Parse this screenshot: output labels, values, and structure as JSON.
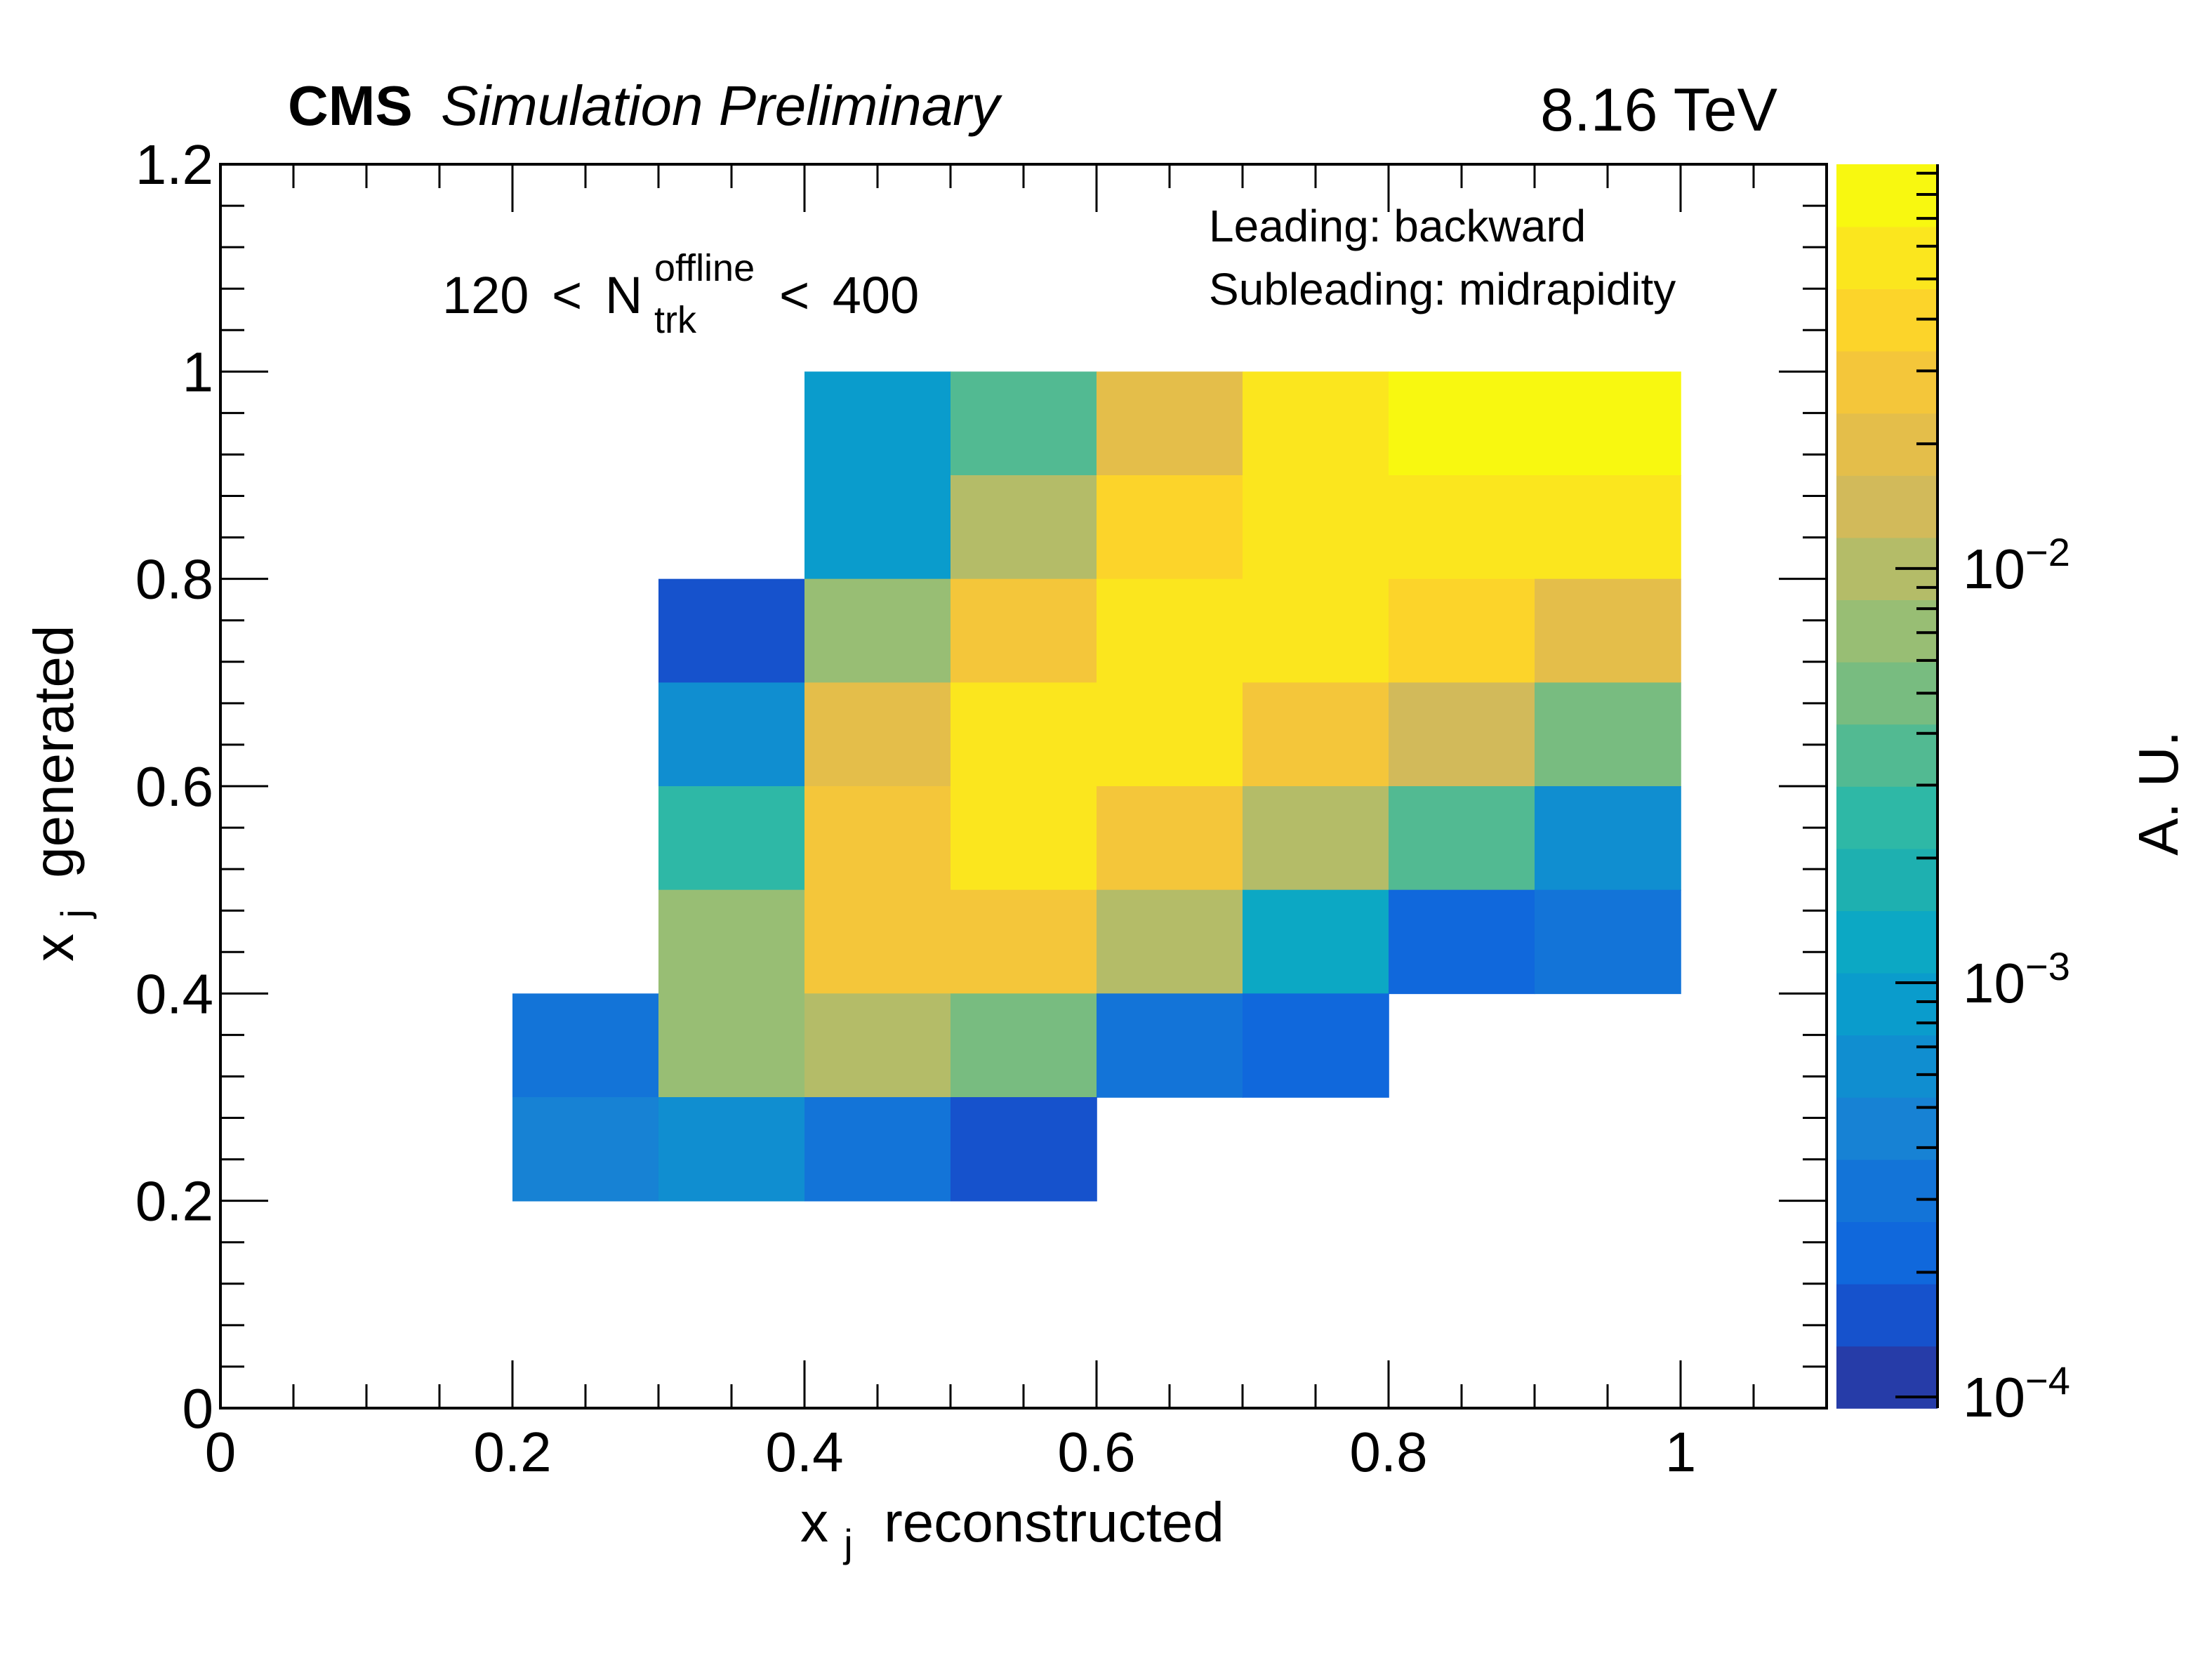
{
  "chart_data": {
    "type": "heatmap",
    "header": {
      "experiment": "CMS",
      "status": "Simulation Preliminary",
      "energy": "8.16 TeV"
    },
    "annotations": {
      "multiplicity": {
        "low": "120",
        "lt1": "<",
        "symbol": "N",
        "sup": "offline",
        "sub": "trk",
        "lt2": "<",
        "high": "400"
      },
      "leading": "Leading: backward",
      "subleading": "Subleading: midrapidity"
    },
    "xlabel": {
      "main": "x",
      "sub": "j",
      "rest": " reconstructed"
    },
    "ylabel": {
      "main": "x",
      "sub": "j",
      "rest": " generated"
    },
    "zlabel": "A. U.",
    "xlim": [
      0,
      1.1
    ],
    "ylim": [
      0,
      1.2
    ],
    "x_ticks_major": [
      0,
      0.2,
      0.4,
      0.6,
      0.8,
      1.0
    ],
    "x_tick_labels": [
      "0",
      "0.2",
      "0.4",
      "0.6",
      "0.8",
      "1"
    ],
    "x_minor_step": 0.05,
    "y_ticks_major": [
      0,
      0.2,
      0.4,
      0.6,
      0.8,
      1.0,
      1.2
    ],
    "y_tick_labels": [
      "0",
      "0.2",
      "0.4",
      "0.6",
      "0.8",
      "1",
      "1.2"
    ],
    "y_minor_step": 0.04,
    "z_scale": "log",
    "zlim": [
      9.4e-05,
      0.0946
    ],
    "z_tick_values": [
      0.0001,
      0.001,
      0.01
    ],
    "z_tick_labels": [
      {
        "base": "10",
        "exp": "−4"
      },
      {
        "base": "10",
        "exp": "−3"
      },
      {
        "base": "10",
        "exp": "−2"
      }
    ],
    "palette": [
      "#263ca8",
      "#1652cc",
      "#1068dc",
      "#1374d8",
      "#1782d4",
      "#108ed0",
      "#0a9ccc",
      "#0ca8c4",
      "#1eb0b0",
      "#2eb8a6",
      "#52ba92",
      "#78bc80",
      "#98be74",
      "#b4bc68",
      "#d2ba5a",
      "#e4be4a",
      "#f4c63a",
      "#fcd42a",
      "#fbe61e",
      "#f8f810"
    ],
    "bin_width": 0.1,
    "bins": [
      {
        "x": 0.4,
        "y": 0.9,
        "z": 0.00092
      },
      {
        "x": 0.5,
        "y": 0.9,
        "z": 0.0036
      },
      {
        "x": 0.6,
        "y": 0.9,
        "z": 0.019
      },
      {
        "x": 0.7,
        "y": 0.9,
        "z": 0.054
      },
      {
        "x": 0.8,
        "y": 0.9,
        "z": 0.077
      },
      {
        "x": 0.9,
        "y": 0.9,
        "z": 0.077
      },
      {
        "x": 0.4,
        "y": 0.8,
        "z": 0.00092
      },
      {
        "x": 0.5,
        "y": 0.8,
        "z": 0.0096
      },
      {
        "x": 0.6,
        "y": 0.8,
        "z": 0.038
      },
      {
        "x": 0.7,
        "y": 0.8,
        "z": 0.054
      },
      {
        "x": 0.8,
        "y": 0.8,
        "z": 0.054
      },
      {
        "x": 0.9,
        "y": 0.8,
        "z": 0.054
      },
      {
        "x": 0.3,
        "y": 0.7,
        "z": 0.00016
      },
      {
        "x": 0.4,
        "y": 0.7,
        "z": 0.0068
      },
      {
        "x": 0.5,
        "y": 0.7,
        "z": 0.027
      },
      {
        "x": 0.6,
        "y": 0.7,
        "z": 0.054
      },
      {
        "x": 0.7,
        "y": 0.7,
        "z": 0.054
      },
      {
        "x": 0.8,
        "y": 0.7,
        "z": 0.038
      },
      {
        "x": 0.9,
        "y": 0.7,
        "z": 0.019
      },
      {
        "x": 0.3,
        "y": 0.6,
        "z": 0.00065
      },
      {
        "x": 0.4,
        "y": 0.6,
        "z": 0.019
      },
      {
        "x": 0.5,
        "y": 0.6,
        "z": 0.054
      },
      {
        "x": 0.6,
        "y": 0.6,
        "z": 0.054
      },
      {
        "x": 0.7,
        "y": 0.6,
        "z": 0.027
      },
      {
        "x": 0.8,
        "y": 0.6,
        "z": 0.0136
      },
      {
        "x": 0.9,
        "y": 0.6,
        "z": 0.0048
      },
      {
        "x": 0.3,
        "y": 0.5,
        "z": 0.0026
      },
      {
        "x": 0.4,
        "y": 0.5,
        "z": 0.027
      },
      {
        "x": 0.5,
        "y": 0.5,
        "z": 0.054
      },
      {
        "x": 0.6,
        "y": 0.5,
        "z": 0.027
      },
      {
        "x": 0.7,
        "y": 0.5,
        "z": 0.0096
      },
      {
        "x": 0.8,
        "y": 0.5,
        "z": 0.0036
      },
      {
        "x": 0.9,
        "y": 0.5,
        "z": 0.00065
      },
      {
        "x": 0.3,
        "y": 0.4,
        "z": 0.0068
      },
      {
        "x": 0.4,
        "y": 0.4,
        "z": 0.027
      },
      {
        "x": 0.5,
        "y": 0.4,
        "z": 0.027
      },
      {
        "x": 0.6,
        "y": 0.4,
        "z": 0.0096
      },
      {
        "x": 0.7,
        "y": 0.4,
        "z": 0.0013
      },
      {
        "x": 0.8,
        "y": 0.4,
        "z": 0.00023
      },
      {
        "x": 0.9,
        "y": 0.4,
        "z": 0.00033
      },
      {
        "x": 0.2,
        "y": 0.3,
        "z": 0.00033
      },
      {
        "x": 0.3,
        "y": 0.3,
        "z": 0.0068
      },
      {
        "x": 0.4,
        "y": 0.3,
        "z": 0.0096
      },
      {
        "x": 0.5,
        "y": 0.3,
        "z": 0.0048
      },
      {
        "x": 0.6,
        "y": 0.3,
        "z": 0.00033
      },
      {
        "x": 0.7,
        "y": 0.3,
        "z": 0.00023
      },
      {
        "x": 0.2,
        "y": 0.2,
        "z": 0.00046
      },
      {
        "x": 0.3,
        "y": 0.2,
        "z": 0.00065
      },
      {
        "x": 0.4,
        "y": 0.2,
        "z": 0.00033
      },
      {
        "x": 0.5,
        "y": 0.2,
        "z": 0.00016
      }
    ],
    "grid": false,
    "colorbar_placement": "right"
  }
}
